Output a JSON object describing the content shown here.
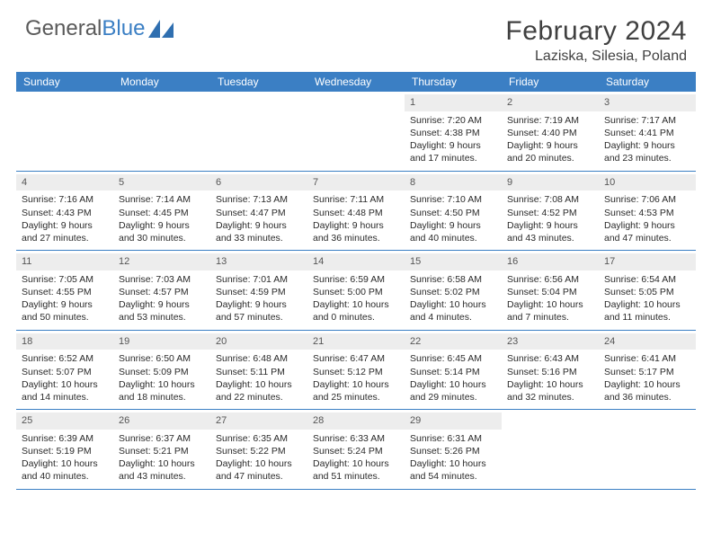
{
  "logo": {
    "text_general": "General",
    "text_blue": "Blue"
  },
  "header": {
    "month_title": "February 2024",
    "location": "Laziska, Silesia, Poland"
  },
  "day_names": [
    "Sunday",
    "Monday",
    "Tuesday",
    "Wednesday",
    "Thursday",
    "Friday",
    "Saturday"
  ],
  "colors": {
    "header_bar": "#3b7fc4",
    "daynum_bg": "#ededed",
    "rule": "#3b7fc4"
  },
  "weeks": [
    [
      {
        "num": "",
        "lines": [
          "",
          "",
          "",
          ""
        ]
      },
      {
        "num": "",
        "lines": [
          "",
          "",
          "",
          ""
        ]
      },
      {
        "num": "",
        "lines": [
          "",
          "",
          "",
          ""
        ]
      },
      {
        "num": "",
        "lines": [
          "",
          "",
          "",
          ""
        ]
      },
      {
        "num": "1",
        "lines": [
          "Sunrise: 7:20 AM",
          "Sunset: 4:38 PM",
          "Daylight: 9 hours",
          "and 17 minutes."
        ]
      },
      {
        "num": "2",
        "lines": [
          "Sunrise: 7:19 AM",
          "Sunset: 4:40 PM",
          "Daylight: 9 hours",
          "and 20 minutes."
        ]
      },
      {
        "num": "3",
        "lines": [
          "Sunrise: 7:17 AM",
          "Sunset: 4:41 PM",
          "Daylight: 9 hours",
          "and 23 minutes."
        ]
      }
    ],
    [
      {
        "num": "4",
        "lines": [
          "Sunrise: 7:16 AM",
          "Sunset: 4:43 PM",
          "Daylight: 9 hours",
          "and 27 minutes."
        ]
      },
      {
        "num": "5",
        "lines": [
          "Sunrise: 7:14 AM",
          "Sunset: 4:45 PM",
          "Daylight: 9 hours",
          "and 30 minutes."
        ]
      },
      {
        "num": "6",
        "lines": [
          "Sunrise: 7:13 AM",
          "Sunset: 4:47 PM",
          "Daylight: 9 hours",
          "and 33 minutes."
        ]
      },
      {
        "num": "7",
        "lines": [
          "Sunrise: 7:11 AM",
          "Sunset: 4:48 PM",
          "Daylight: 9 hours",
          "and 36 minutes."
        ]
      },
      {
        "num": "8",
        "lines": [
          "Sunrise: 7:10 AM",
          "Sunset: 4:50 PM",
          "Daylight: 9 hours",
          "and 40 minutes."
        ]
      },
      {
        "num": "9",
        "lines": [
          "Sunrise: 7:08 AM",
          "Sunset: 4:52 PM",
          "Daylight: 9 hours",
          "and 43 minutes."
        ]
      },
      {
        "num": "10",
        "lines": [
          "Sunrise: 7:06 AM",
          "Sunset: 4:53 PM",
          "Daylight: 9 hours",
          "and 47 minutes."
        ]
      }
    ],
    [
      {
        "num": "11",
        "lines": [
          "Sunrise: 7:05 AM",
          "Sunset: 4:55 PM",
          "Daylight: 9 hours",
          "and 50 minutes."
        ]
      },
      {
        "num": "12",
        "lines": [
          "Sunrise: 7:03 AM",
          "Sunset: 4:57 PM",
          "Daylight: 9 hours",
          "and 53 minutes."
        ]
      },
      {
        "num": "13",
        "lines": [
          "Sunrise: 7:01 AM",
          "Sunset: 4:59 PM",
          "Daylight: 9 hours",
          "and 57 minutes."
        ]
      },
      {
        "num": "14",
        "lines": [
          "Sunrise: 6:59 AM",
          "Sunset: 5:00 PM",
          "Daylight: 10 hours",
          "and 0 minutes."
        ]
      },
      {
        "num": "15",
        "lines": [
          "Sunrise: 6:58 AM",
          "Sunset: 5:02 PM",
          "Daylight: 10 hours",
          "and 4 minutes."
        ]
      },
      {
        "num": "16",
        "lines": [
          "Sunrise: 6:56 AM",
          "Sunset: 5:04 PM",
          "Daylight: 10 hours",
          "and 7 minutes."
        ]
      },
      {
        "num": "17",
        "lines": [
          "Sunrise: 6:54 AM",
          "Sunset: 5:05 PM",
          "Daylight: 10 hours",
          "and 11 minutes."
        ]
      }
    ],
    [
      {
        "num": "18",
        "lines": [
          "Sunrise: 6:52 AM",
          "Sunset: 5:07 PM",
          "Daylight: 10 hours",
          "and 14 minutes."
        ]
      },
      {
        "num": "19",
        "lines": [
          "Sunrise: 6:50 AM",
          "Sunset: 5:09 PM",
          "Daylight: 10 hours",
          "and 18 minutes."
        ]
      },
      {
        "num": "20",
        "lines": [
          "Sunrise: 6:48 AM",
          "Sunset: 5:11 PM",
          "Daylight: 10 hours",
          "and 22 minutes."
        ]
      },
      {
        "num": "21",
        "lines": [
          "Sunrise: 6:47 AM",
          "Sunset: 5:12 PM",
          "Daylight: 10 hours",
          "and 25 minutes."
        ]
      },
      {
        "num": "22",
        "lines": [
          "Sunrise: 6:45 AM",
          "Sunset: 5:14 PM",
          "Daylight: 10 hours",
          "and 29 minutes."
        ]
      },
      {
        "num": "23",
        "lines": [
          "Sunrise: 6:43 AM",
          "Sunset: 5:16 PM",
          "Daylight: 10 hours",
          "and 32 minutes."
        ]
      },
      {
        "num": "24",
        "lines": [
          "Sunrise: 6:41 AM",
          "Sunset: 5:17 PM",
          "Daylight: 10 hours",
          "and 36 minutes."
        ]
      }
    ],
    [
      {
        "num": "25",
        "lines": [
          "Sunrise: 6:39 AM",
          "Sunset: 5:19 PM",
          "Daylight: 10 hours",
          "and 40 minutes."
        ]
      },
      {
        "num": "26",
        "lines": [
          "Sunrise: 6:37 AM",
          "Sunset: 5:21 PM",
          "Daylight: 10 hours",
          "and 43 minutes."
        ]
      },
      {
        "num": "27",
        "lines": [
          "Sunrise: 6:35 AM",
          "Sunset: 5:22 PM",
          "Daylight: 10 hours",
          "and 47 minutes."
        ]
      },
      {
        "num": "28",
        "lines": [
          "Sunrise: 6:33 AM",
          "Sunset: 5:24 PM",
          "Daylight: 10 hours",
          "and 51 minutes."
        ]
      },
      {
        "num": "29",
        "lines": [
          "Sunrise: 6:31 AM",
          "Sunset: 5:26 PM",
          "Daylight: 10 hours",
          "and 54 minutes."
        ]
      },
      {
        "num": "",
        "lines": [
          "",
          "",
          "",
          ""
        ]
      },
      {
        "num": "",
        "lines": [
          "",
          "",
          "",
          ""
        ]
      }
    ]
  ]
}
